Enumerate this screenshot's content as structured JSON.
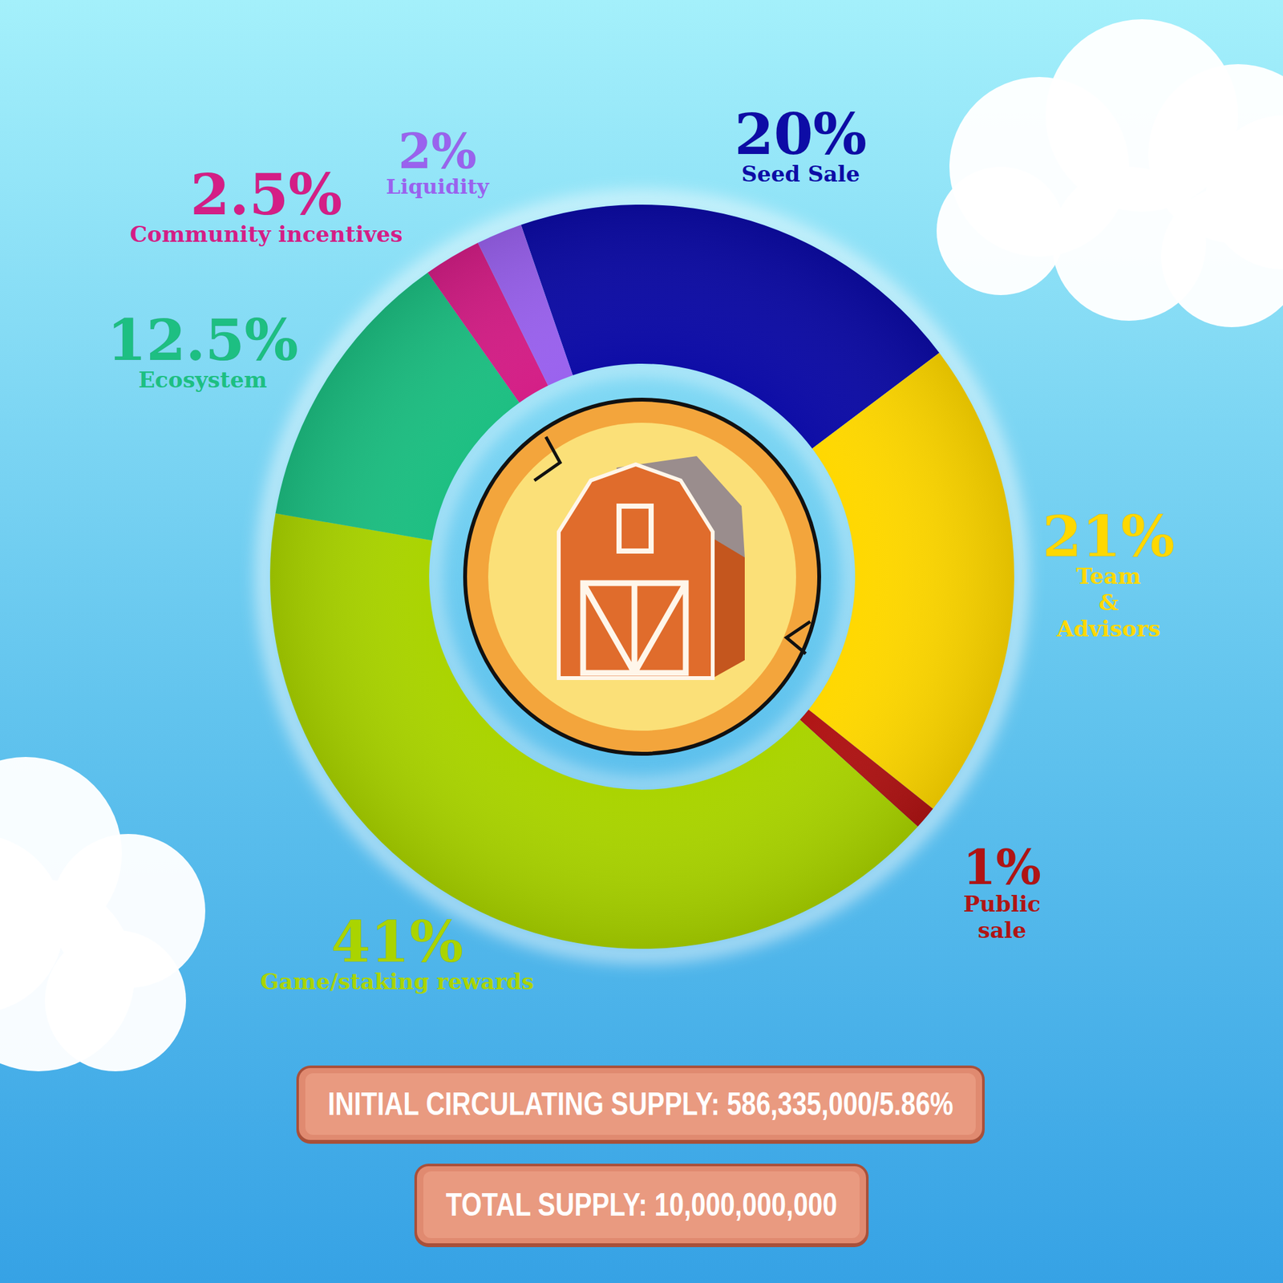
{
  "chart_data": {
    "type": "donut",
    "categories": [
      "Seed Sale",
      "Team & Advisors",
      "Public sale",
      "Game/staking rewards",
      "Ecosystem",
      "Community incentives",
      "Liquidity"
    ],
    "values": [
      20,
      21,
      1,
      41,
      12.5,
      2.5,
      2
    ],
    "value_labels": [
      "20%",
      "21%",
      "1%",
      "41%",
      "12.5%",
      "2.5%",
      "2%"
    ],
    "colors": [
      "#0d0ca6",
      "#ffd800",
      "#b01414",
      "#aad400",
      "#1dbf82",
      "#d41e86",
      "#9a62ee"
    ],
    "data_labels": true,
    "annotations": [
      "INITIAL CIRCULATING SUPPLY: 586,335,000/5.86%",
      "TOTAL SUPPLY: 10,000,000,000"
    ]
  }
}
